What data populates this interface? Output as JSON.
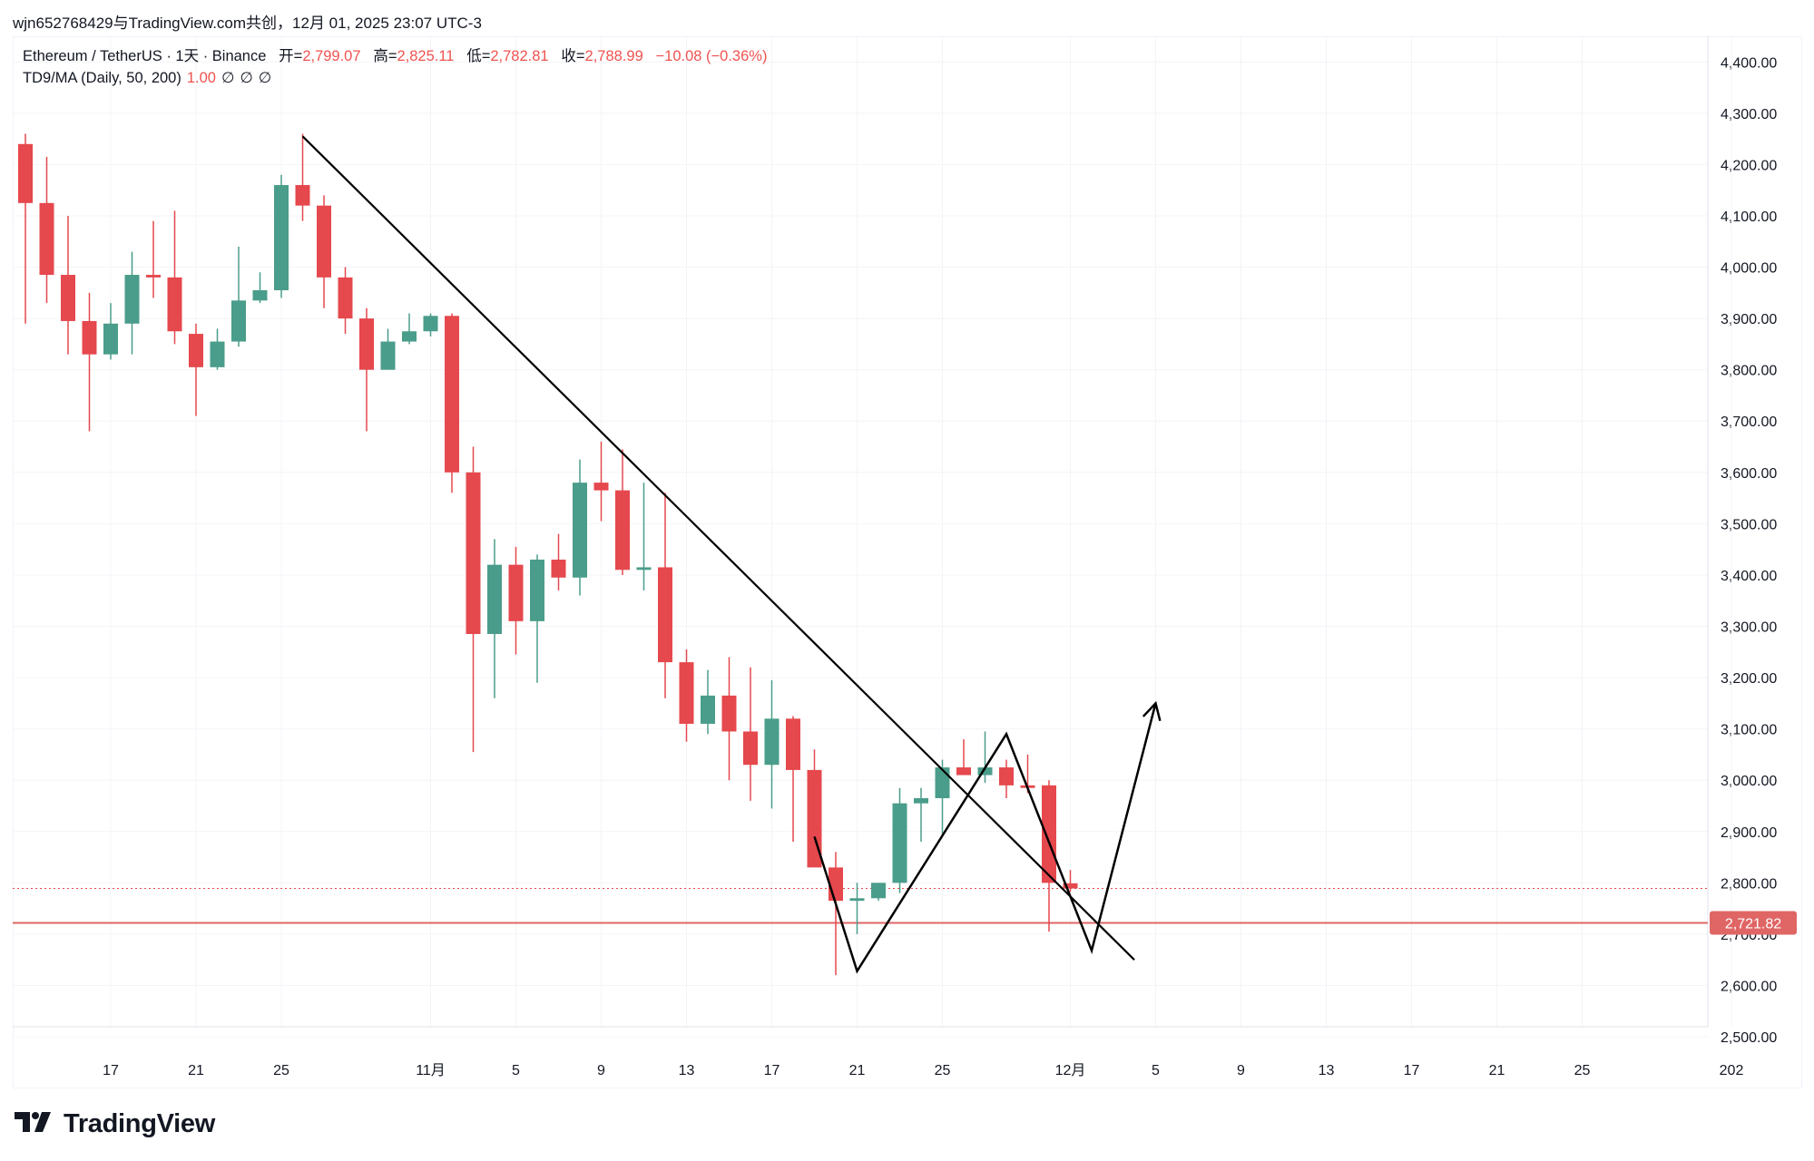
{
  "header": {
    "share_text": "wjn652768429与TradingView.com共创，12月 01, 2025 23:07 UTC-3"
  },
  "legend": {
    "symbol": "Ethereum / TetherUS · 1天 · Binance",
    "open_label": "开=",
    "open_value": "2,799.07",
    "high_label": "高=",
    "high_value": "2,825.11",
    "low_label": "低=",
    "low_value": "2,782.81",
    "close_label": "收=",
    "close_value": "2,788.99",
    "change": "−10.08 (−0.36%)",
    "indicator_name": "TD9/MA (Daily, 50, 200)",
    "indicator_value": "1.00",
    "indicator_nulls": [
      "∅",
      "∅",
      "∅"
    ]
  },
  "brand": {
    "name": "TradingView",
    "icon": "tradingview-logo-icon"
  },
  "colors": {
    "up": "#26a69a",
    "up_body": "#4a9d8a",
    "down": "#e5484d",
    "price_line": "#e06666",
    "grid": "#f3f4f8",
    "axis_text": "#131722"
  },
  "chart_data": {
    "type": "candlestick",
    "ylim": [
      2470,
      4450
    ],
    "y_ticks": [
      {
        "value": 4400,
        "label": "4,400.00"
      },
      {
        "value": 4300,
        "label": "4,300.00"
      },
      {
        "value": 4200,
        "label": "4,200.00"
      },
      {
        "value": 4100,
        "label": "4,100.00"
      },
      {
        "value": 4000,
        "label": "4,000.00"
      },
      {
        "value": 3900,
        "label": "3,900.00"
      },
      {
        "value": 3800,
        "label": "3,800.00"
      },
      {
        "value": 3700,
        "label": "3,700.00"
      },
      {
        "value": 3600,
        "label": "3,600.00"
      },
      {
        "value": 3500,
        "label": "3,500.00"
      },
      {
        "value": 3400,
        "label": "3,400.00"
      },
      {
        "value": 3300,
        "label": "3,300.00"
      },
      {
        "value": 3200,
        "label": "3,200.00"
      },
      {
        "value": 3100,
        "label": "3,100.00"
      },
      {
        "value": 3000,
        "label": "3,000.00"
      },
      {
        "value": 2900,
        "label": "2,900.00"
      },
      {
        "value": 2800,
        "label": "2,800.00"
      },
      {
        "value": 2700,
        "label": "2,700.00"
      },
      {
        "value": 2600,
        "label": "2,600.00"
      },
      {
        "value": 2500,
        "label": "2,500.00"
      }
    ],
    "x_ticks": [
      {
        "date": "2025-10-17",
        "label": "17"
      },
      {
        "date": "2025-10-21",
        "label": "21"
      },
      {
        "date": "2025-10-25",
        "label": "25"
      },
      {
        "date": "2025-11-01",
        "label": "11月"
      },
      {
        "date": "2025-11-05",
        "label": "5"
      },
      {
        "date": "2025-11-09",
        "label": "9"
      },
      {
        "date": "2025-11-13",
        "label": "13"
      },
      {
        "date": "2025-11-17",
        "label": "17"
      },
      {
        "date": "2025-11-21",
        "label": "21"
      },
      {
        "date": "2025-11-25",
        "label": "25"
      },
      {
        "date": "2025-12-01",
        "label": "12月"
      },
      {
        "date": "2025-12-05",
        "label": "5"
      },
      {
        "date": "2025-12-09",
        "label": "9"
      },
      {
        "date": "2025-12-13",
        "label": "13"
      },
      {
        "date": "2025-12-17",
        "label": "17"
      },
      {
        "date": "2025-12-21",
        "label": "21"
      },
      {
        "date": "2025-12-25",
        "label": "25"
      },
      {
        "date": "2026-01-01",
        "label": "202"
      }
    ],
    "candles": [
      {
        "date": "2025-10-13",
        "o": 4240,
        "h": 4260,
        "l": 3890,
        "c": 4125
      },
      {
        "date": "2025-10-14",
        "o": 4125,
        "h": 4215,
        "l": 3930,
        "c": 3985
      },
      {
        "date": "2025-10-15",
        "o": 3985,
        "h": 4100,
        "l": 3830,
        "c": 3895
      },
      {
        "date": "2025-10-16",
        "o": 3895,
        "h": 3950,
        "l": 3680,
        "c": 3830
      },
      {
        "date": "2025-10-17",
        "o": 3830,
        "h": 3930,
        "l": 3820,
        "c": 3890
      },
      {
        "date": "2025-10-18",
        "o": 3890,
        "h": 4030,
        "l": 3830,
        "c": 3985
      },
      {
        "date": "2025-10-19",
        "o": 3985,
        "h": 4090,
        "l": 3940,
        "c": 3980
      },
      {
        "date": "2025-10-20",
        "o": 3980,
        "h": 4110,
        "l": 3850,
        "c": 3875
      },
      {
        "date": "2025-10-21",
        "o": 3870,
        "h": 3890,
        "l": 3710,
        "c": 3805
      },
      {
        "date": "2025-10-22",
        "o": 3805,
        "h": 3880,
        "l": 3800,
        "c": 3855
      },
      {
        "date": "2025-10-23",
        "o": 3855,
        "h": 4040,
        "l": 3845,
        "c": 3935
      },
      {
        "date": "2025-10-24",
        "o": 3935,
        "h": 3990,
        "l": 3930,
        "c": 3955
      },
      {
        "date": "2025-10-25",
        "o": 3955,
        "h": 4180,
        "l": 3940,
        "c": 4160
      },
      {
        "date": "2025-10-26",
        "o": 4160,
        "h": 4260,
        "l": 4090,
        "c": 4120
      },
      {
        "date": "2025-10-27",
        "o": 4120,
        "h": 4140,
        "l": 3920,
        "c": 3980
      },
      {
        "date": "2025-10-28",
        "o": 3980,
        "h": 4000,
        "l": 3870,
        "c": 3900
      },
      {
        "date": "2025-10-29",
        "o": 3900,
        "h": 3920,
        "l": 3680,
        "c": 3800
      },
      {
        "date": "2025-10-30",
        "o": 3800,
        "h": 3880,
        "l": 3800,
        "c": 3855
      },
      {
        "date": "2025-10-31",
        "o": 3855,
        "h": 3910,
        "l": 3850,
        "c": 3875
      },
      {
        "date": "2025-11-01",
        "o": 3875,
        "h": 3910,
        "l": 3865,
        "c": 3905
      },
      {
        "date": "2025-11-02",
        "o": 3905,
        "h": 3910,
        "l": 3560,
        "c": 3600
      },
      {
        "date": "2025-11-03",
        "o": 3600,
        "h": 3650,
        "l": 3055,
        "c": 3285
      },
      {
        "date": "2025-11-04",
        "o": 3285,
        "h": 3470,
        "l": 3160,
        "c": 3420
      },
      {
        "date": "2025-11-05",
        "o": 3420,
        "h": 3455,
        "l": 3245,
        "c": 3310
      },
      {
        "date": "2025-11-06",
        "o": 3310,
        "h": 3440,
        "l": 3190,
        "c": 3430
      },
      {
        "date": "2025-11-07",
        "o": 3430,
        "h": 3480,
        "l": 3370,
        "c": 3395
      },
      {
        "date": "2025-11-08",
        "o": 3395,
        "h": 3625,
        "l": 3360,
        "c": 3580
      },
      {
        "date": "2025-11-09",
        "o": 3580,
        "h": 3660,
        "l": 3505,
        "c": 3565
      },
      {
        "date": "2025-11-10",
        "o": 3565,
        "h": 3645,
        "l": 3400,
        "c": 3410
      },
      {
        "date": "2025-11-11",
        "o": 3410,
        "h": 3580,
        "l": 3370,
        "c": 3415
      },
      {
        "date": "2025-11-12",
        "o": 3415,
        "h": 3560,
        "l": 3160,
        "c": 3230
      },
      {
        "date": "2025-11-13",
        "o": 3230,
        "h": 3255,
        "l": 3075,
        "c": 3110
      },
      {
        "date": "2025-11-14",
        "o": 3110,
        "h": 3215,
        "l": 3090,
        "c": 3165
      },
      {
        "date": "2025-11-15",
        "o": 3165,
        "h": 3240,
        "l": 3000,
        "c": 3095
      },
      {
        "date": "2025-11-16",
        "o": 3095,
        "h": 3220,
        "l": 2960,
        "c": 3030
      },
      {
        "date": "2025-11-17",
        "o": 3030,
        "h": 3195,
        "l": 2945,
        "c": 3120
      },
      {
        "date": "2025-11-18",
        "o": 3120,
        "h": 3125,
        "l": 2880,
        "c": 3020
      },
      {
        "date": "2025-11-19",
        "o": 3020,
        "h": 3060,
        "l": 2840,
        "c": 2830
      },
      {
        "date": "2025-11-20",
        "o": 2830,
        "h": 2860,
        "l": 2620,
        "c": 2765
      },
      {
        "date": "2025-11-21",
        "o": 2765,
        "h": 2800,
        "l": 2700,
        "c": 2770
      },
      {
        "date": "2025-11-22",
        "o": 2770,
        "h": 2800,
        "l": 2765,
        "c": 2800
      },
      {
        "date": "2025-11-23",
        "o": 2800,
        "h": 2985,
        "l": 2780,
        "c": 2955
      },
      {
        "date": "2025-11-24",
        "o": 2955,
        "h": 2985,
        "l": 2880,
        "c": 2965
      },
      {
        "date": "2025-11-25",
        "o": 2965,
        "h": 3040,
        "l": 2890,
        "c": 3025
      },
      {
        "date": "2025-11-26",
        "o": 3025,
        "h": 3080,
        "l": 3010,
        "c": 3010
      },
      {
        "date": "2025-11-27",
        "o": 3010,
        "h": 3095,
        "l": 2995,
        "c": 3025
      },
      {
        "date": "2025-11-28",
        "o": 3025,
        "h": 3040,
        "l": 2965,
        "c": 2990
      },
      {
        "date": "2025-11-29",
        "o": 2990,
        "h": 3050,
        "l": 2975,
        "c": 2985
      },
      {
        "date": "2025-11-30",
        "o": 2990,
        "h": 3000,
        "l": 2705,
        "c": 2800
      },
      {
        "date": "2025-12-01",
        "o": 2799.07,
        "h": 2825.11,
        "l": 2782.81,
        "c": 2788.99
      }
    ],
    "last_price": 2788.99,
    "horizontal_line": {
      "value": 2721.82,
      "label": "2,721.82"
    },
    "drawings": {
      "trendline": [
        {
          "date": "2025-10-26",
          "price": 4255
        },
        {
          "date": "2025-12-04",
          "price": 2650
        }
      ],
      "zigzag": [
        {
          "date": "2025-11-19",
          "price": 2890
        },
        {
          "date": "2025-11-21",
          "price": 2628
        },
        {
          "date": "2025-11-28",
          "price": 3090
        },
        {
          "date": "2025-12-02",
          "price": 2668
        },
        {
          "date": "2025-12-05",
          "price": 3150
        }
      ]
    }
  }
}
